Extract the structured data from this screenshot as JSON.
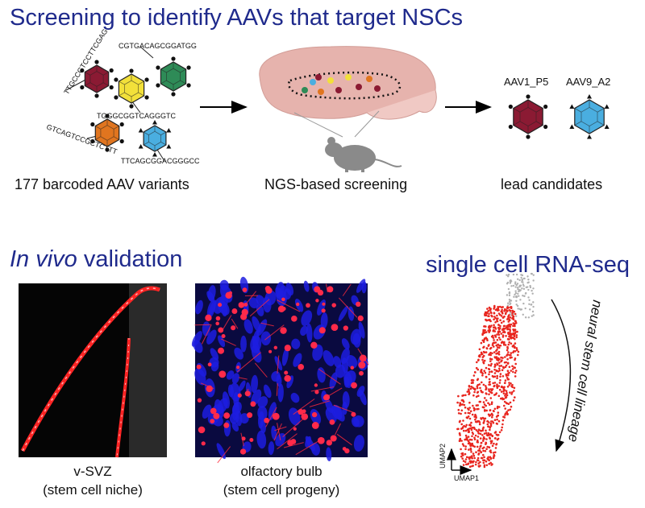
{
  "title": "Screening to identify AAVs that target NSCs",
  "steps": [
    {
      "label": "177 barcoded AAV variants"
    },
    {
      "label": "NGS-based screening"
    },
    {
      "label": "lead candidates"
    }
  ],
  "barcodes": [
    "TTGCCGTCCTTCGAG",
    "CGTGACAGCGGATGG",
    "TGGGCGGTCAGGGTC",
    "GTCAGTCCGCTCTTT",
    "TTCAGCGGACGGGCC"
  ],
  "candidates": [
    "AAV1_P5",
    "AAV9_A2"
  ],
  "validation": {
    "title_italic": "In vivo",
    "title_rest": " validation",
    "images": [
      {
        "line1": "v-SVZ",
        "line2": "(stem cell niche)"
      },
      {
        "line1": "olfactory bulb",
        "line2": "(stem cell progeny)"
      }
    ]
  },
  "scrna": {
    "title": "single cell RNA-seq",
    "xaxis": "UMAP1",
    "yaxis": "UMAP2",
    "lineage_label": "neural stem cell lineage"
  },
  "colors": {
    "title_blue": "#1f2a8c",
    "virus_maroon": "#8b1a33",
    "virus_green": "#2e8b57",
    "virus_yellow": "#f2e03a",
    "virus_orange": "#e0751f",
    "virus_blue": "#4aaee0",
    "brain_pink": "#e6b3ad",
    "umap_red": "#e8261f"
  }
}
